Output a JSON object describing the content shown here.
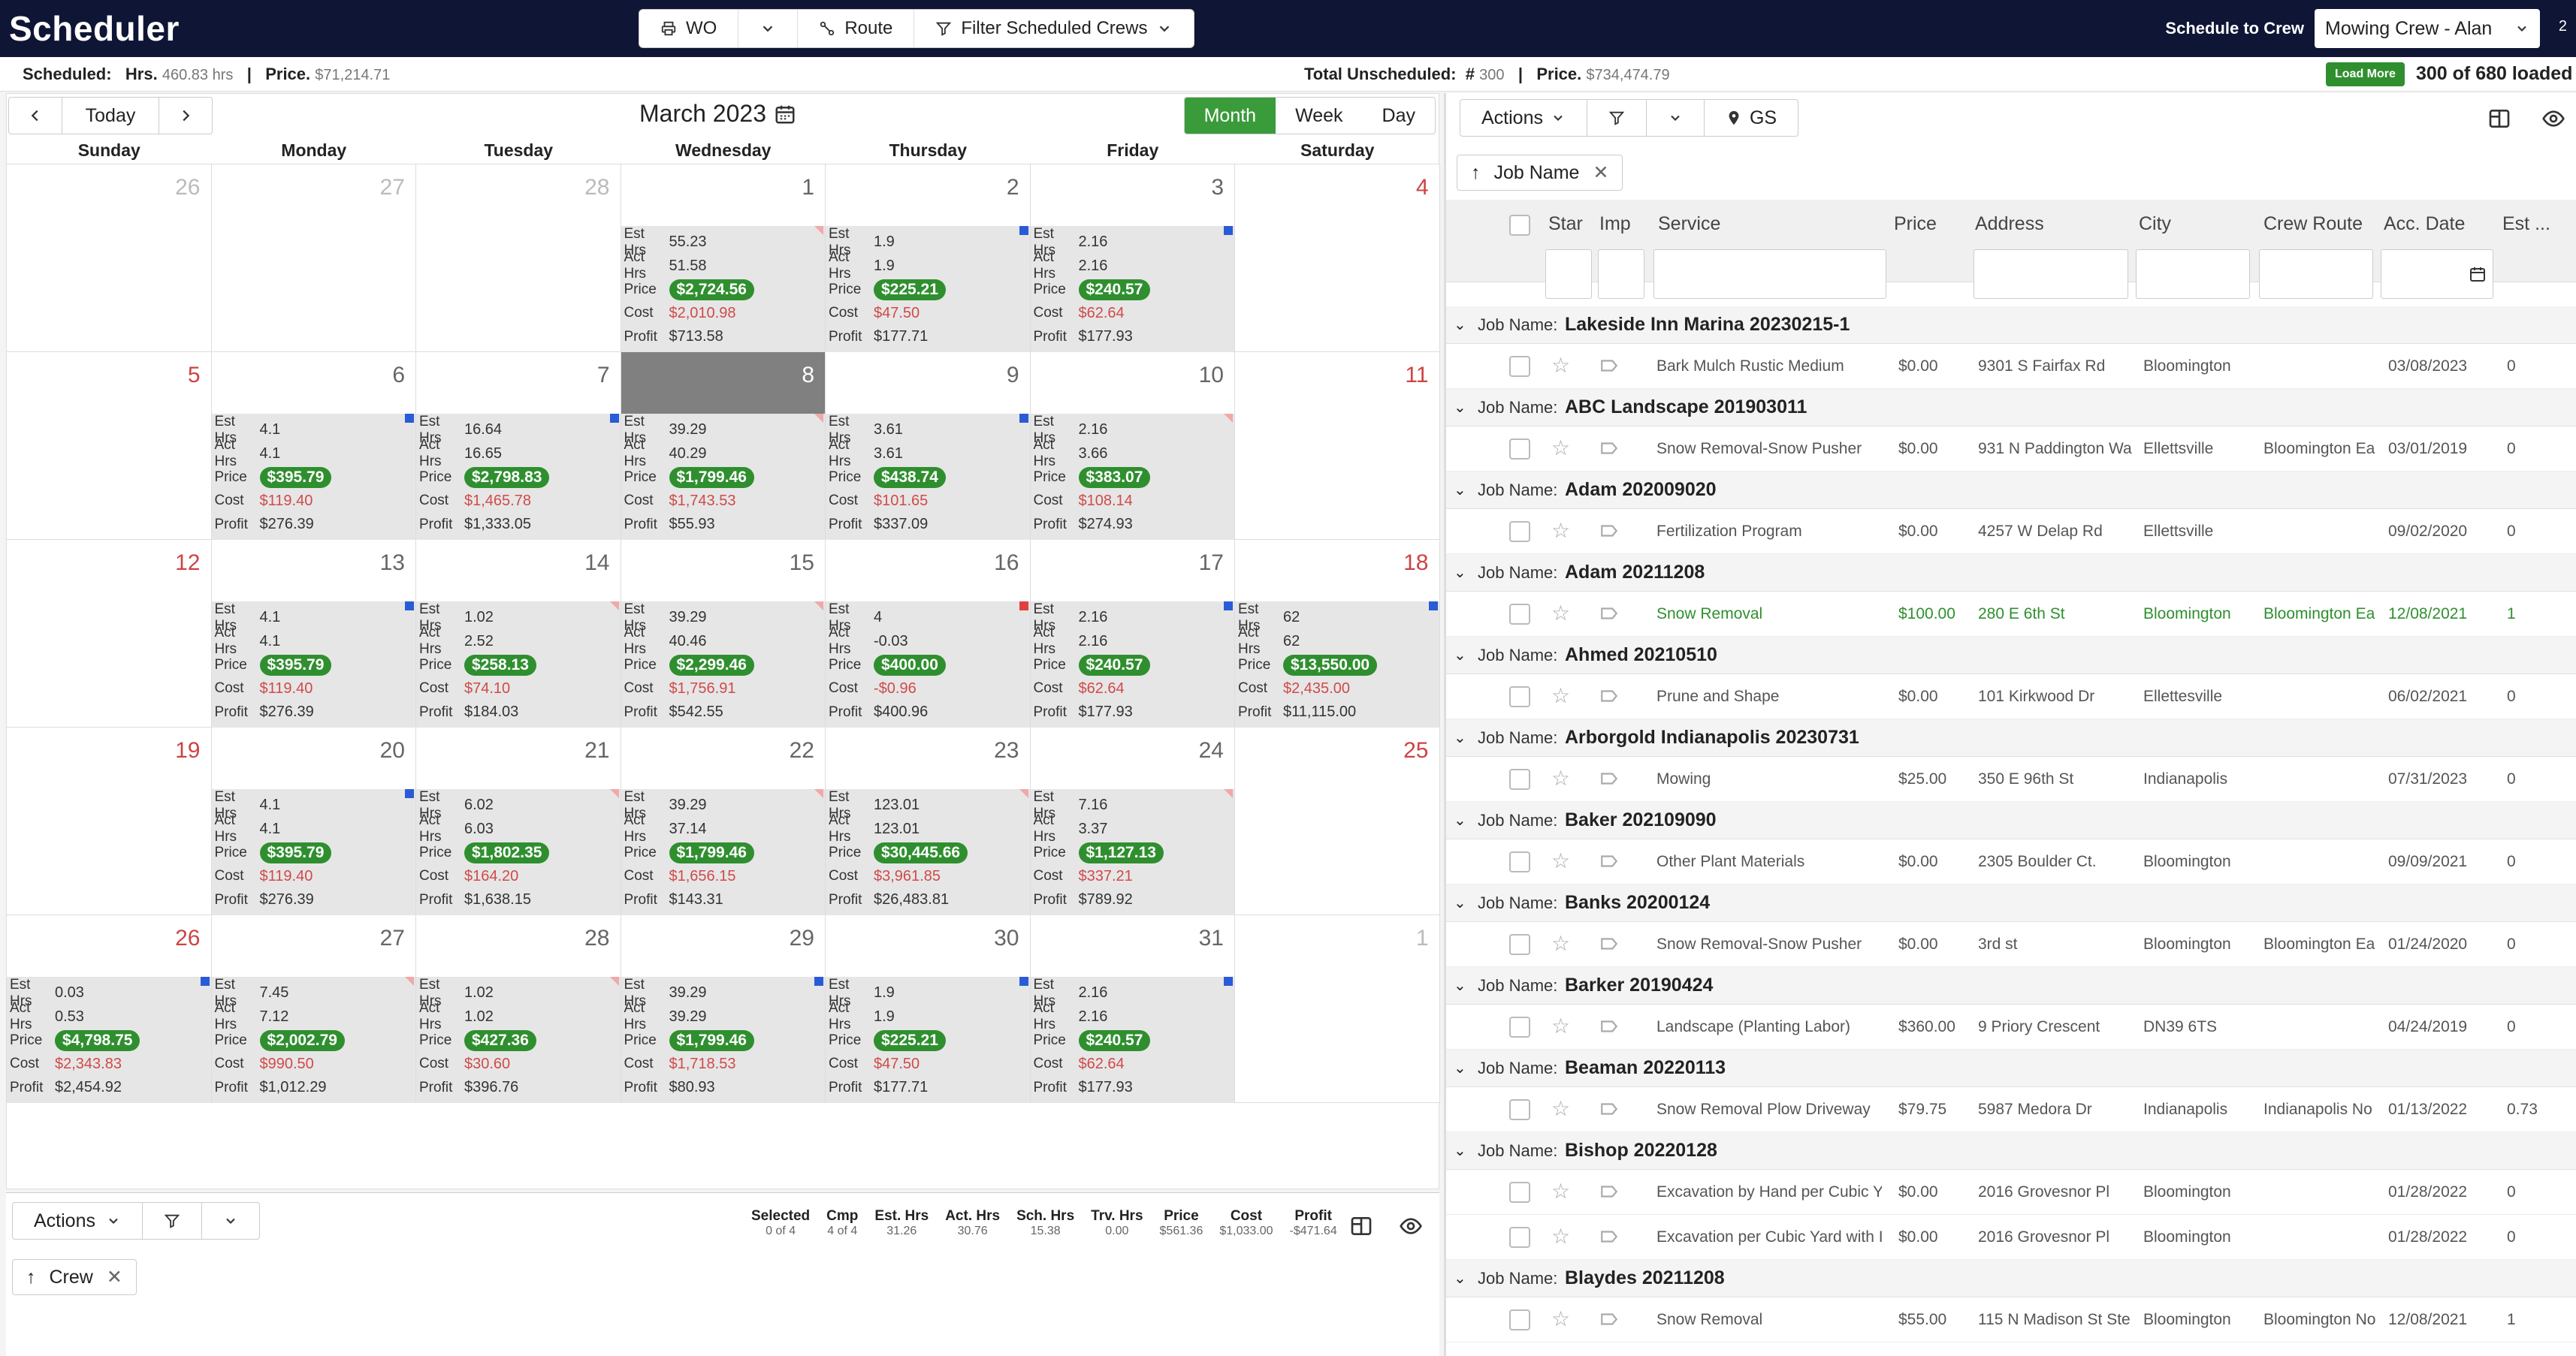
{
  "header": {
    "app_title": "Scheduler",
    "wo_label": "WO",
    "route_label": "Route",
    "filter_label": "Filter Scheduled Crews",
    "schedule_to_crew_label": "Schedule to Crew",
    "crew_selected": "Mowing Crew - Alan",
    "page_indicator": "2"
  },
  "summary": {
    "scheduled_label": "Scheduled:",
    "hrs_label": "Hrs.",
    "hrs_value": "460.83 hrs",
    "price_label": "Price.",
    "price_value": "$71,214.71",
    "unscheduled_label": "Total Unscheduled:",
    "unscheduled_count_label": "#",
    "unscheduled_count": "300",
    "unscheduled_price_label": "Price.",
    "unscheduled_price": "$734,474.79",
    "load_more": "Load More",
    "loaded_text": "300 of 680 loaded"
  },
  "calendar": {
    "today_label": "Today",
    "month_title": "March 2023",
    "views": [
      "Month",
      "Week",
      "Day"
    ],
    "active_view": "Month",
    "day_names": [
      "Sunday",
      "Monday",
      "Tuesday",
      "Wednesday",
      "Thursday",
      "Friday",
      "Saturday"
    ],
    "stat_labels": {
      "est": "Est Hrs",
      "act": "Act Hrs",
      "price": "Price",
      "cost": "Cost",
      "profit": "Profit"
    },
    "weeks": [
      [
        {
          "day": "26",
          "out": true
        },
        {
          "day": "27",
          "out": true
        },
        {
          "day": "28",
          "out": true
        },
        {
          "day": "1",
          "flag": "pink",
          "est": "55.23",
          "act": "51.58",
          "price": "$2,724.56",
          "cost": "$2,010.98",
          "profit": "$713.58"
        },
        {
          "day": "2",
          "flag": "blue",
          "est": "1.9",
          "act": "1.9",
          "price": "$225.21",
          "cost": "$47.50",
          "profit": "$177.71"
        },
        {
          "day": "3",
          "flag": "blue",
          "est": "2.16",
          "act": "2.16",
          "price": "$240.57",
          "cost": "$62.64",
          "profit": "$177.93"
        },
        {
          "day": "4",
          "weekend": true
        }
      ],
      [
        {
          "day": "5",
          "weekend": true
        },
        {
          "day": "6",
          "flag": "blue",
          "est": "4.1",
          "act": "4.1",
          "price": "$395.79",
          "cost": "$119.40",
          "profit": "$276.39"
        },
        {
          "day": "7",
          "flag": "blue",
          "est": "16.64",
          "act": "16.65",
          "price": "$2,798.83",
          "cost": "$1,465.78",
          "profit": "$1,333.05"
        },
        {
          "day": "8",
          "selected": true,
          "flag": "pink",
          "est": "39.29",
          "act": "40.29",
          "price": "$1,799.46",
          "cost": "$1,743.53",
          "profit": "$55.93"
        },
        {
          "day": "9",
          "flag": "blue",
          "est": "3.61",
          "act": "3.61",
          "price": "$438.74",
          "cost": "$101.65",
          "profit": "$337.09"
        },
        {
          "day": "10",
          "flag": "pink",
          "est": "2.16",
          "act": "3.66",
          "price": "$383.07",
          "cost": "$108.14",
          "profit": "$274.93"
        },
        {
          "day": "11",
          "weekend": true
        }
      ],
      [
        {
          "day": "12",
          "weekend": true
        },
        {
          "day": "13",
          "flag": "blue",
          "est": "4.1",
          "act": "4.1",
          "price": "$395.79",
          "cost": "$119.40",
          "profit": "$276.39"
        },
        {
          "day": "14",
          "flag": "pink",
          "est": "1.02",
          "act": "2.52",
          "price": "$258.13",
          "cost": "$74.10",
          "profit": "$184.03"
        },
        {
          "day": "15",
          "flag": "pink",
          "est": "39.29",
          "act": "40.46",
          "price": "$2,299.46",
          "cost": "$1,756.91",
          "profit": "$542.55"
        },
        {
          "day": "16",
          "flag": "red",
          "est": "4",
          "act": "-0.03",
          "price": "$400.00",
          "cost": "-$0.96",
          "profit": "$400.96"
        },
        {
          "day": "17",
          "flag": "blue",
          "est": "2.16",
          "act": "2.16",
          "price": "$240.57",
          "cost": "$62.64",
          "profit": "$177.93"
        },
        {
          "day": "18",
          "weekend": true,
          "flag": "blue",
          "est": "62",
          "act": "62",
          "price": "$13,550.00",
          "cost": "$2,435.00",
          "profit": "$11,115.00"
        }
      ],
      [
        {
          "day": "19",
          "weekend": true
        },
        {
          "day": "20",
          "flag": "blue",
          "est": "4.1",
          "act": "4.1",
          "price": "$395.79",
          "cost": "$119.40",
          "profit": "$276.39"
        },
        {
          "day": "21",
          "flag": "pink",
          "est": "6.02",
          "act": "6.03",
          "price": "$1,802.35",
          "cost": "$164.20",
          "profit": "$1,638.15"
        },
        {
          "day": "22",
          "flag": "pink",
          "est": "39.29",
          "act": "37.14",
          "price": "$1,799.46",
          "cost": "$1,656.15",
          "profit": "$143.31"
        },
        {
          "day": "23",
          "flag": "pink",
          "est": "123.01",
          "act": "123.01",
          "price": "$30,445.66",
          "cost": "$3,961.85",
          "profit": "$26,483.81"
        },
        {
          "day": "24",
          "flag": "pink",
          "est": "7.16",
          "act": "3.37",
          "price": "$1,127.13",
          "cost": "$337.21",
          "profit": "$789.92"
        },
        {
          "day": "25",
          "weekend": true
        }
      ],
      [
        {
          "day": "26",
          "weekend": true,
          "flag": "blue",
          "est": "0.03",
          "act": "0.53",
          "price": "$4,798.75",
          "cost": "$2,343.83",
          "profit": "$2,454.92"
        },
        {
          "day": "27",
          "flag": "pink",
          "est": "7.45",
          "act": "7.12",
          "price": "$2,002.79",
          "cost": "$990.50",
          "profit": "$1,012.29"
        },
        {
          "day": "28",
          "flag": "pink",
          "est": "1.02",
          "act": "1.02",
          "price": "$427.36",
          "cost": "$30.60",
          "profit": "$396.76"
        },
        {
          "day": "29",
          "flag": "blue",
          "est": "39.29",
          "act": "39.29",
          "price": "$1,799.46",
          "cost": "$1,718.53",
          "profit": "$80.93"
        },
        {
          "day": "30",
          "flag": "blue",
          "est": "1.9",
          "act": "1.9",
          "price": "$225.21",
          "cost": "$47.50",
          "profit": "$177.71"
        },
        {
          "day": "31",
          "flag": "blue",
          "est": "2.16",
          "act": "2.16",
          "price": "$240.57",
          "cost": "$62.64",
          "profit": "$177.93"
        },
        {
          "day": "1",
          "out": true
        }
      ]
    ]
  },
  "bottom_panel": {
    "actions_label": "Actions",
    "stats": [
      {
        "label": "Selected",
        "value": "0 of 4"
      },
      {
        "label": "Cmp",
        "value": "4 of 4"
      },
      {
        "label": "Est. Hrs",
        "value": "31.26"
      },
      {
        "label": "Act. Hrs",
        "value": "30.76"
      },
      {
        "label": "Sch. Hrs",
        "value": "15.38"
      },
      {
        "label": "Trv. Hrs",
        "value": "0.00"
      },
      {
        "label": "Price",
        "value": "$561.36"
      },
      {
        "label": "Cost",
        "value": "$1,033.00"
      },
      {
        "label": "Profit",
        "value": "-$471.64"
      }
    ],
    "group_chip": "Crew"
  },
  "right_panel": {
    "actions_label": "Actions",
    "gs_label": "GS",
    "group_chip": "Job Name",
    "columns": [
      "Star",
      "Imp",
      "Service",
      "Price",
      "Address",
      "City",
      "Crew Route",
      "Acc. Date",
      "Est ..."
    ],
    "group_label": "Job Name:",
    "groups": [
      {
        "name": "Lakeside Inn Marina 20230215-1",
        "items": [
          {
            "service": "Bark Mulch Rustic Medium",
            "price": "$0.00",
            "address": "9301 S Fairfax Rd",
            "city": "Bloomington",
            "route": "",
            "date": "03/08/2023",
            "est": "0"
          }
        ]
      },
      {
        "name": "ABC Landscape 201903011",
        "items": [
          {
            "service": "Snow Removal-Snow Pusher",
            "price": "$0.00",
            "address": "931 N Paddington Wa",
            "city": "Ellettsville",
            "route": "Bloomington Ea",
            "date": "03/01/2019",
            "est": "0"
          }
        ]
      },
      {
        "name": "Adam 202009020",
        "items": [
          {
            "service": "Fertilization Program",
            "price": "$0.00",
            "address": "4257 W Delap Rd",
            "city": "Ellettsville",
            "route": "",
            "date": "09/02/2020",
            "est": "0"
          }
        ]
      },
      {
        "name": "Adam 20211208",
        "items": [
          {
            "service": "Snow Removal",
            "price": "$100.00",
            "address": "280 E 6th St",
            "city": "Bloomington",
            "route": "Bloomington Ea",
            "date": "12/08/2021",
            "est": "1",
            "green": true
          }
        ]
      },
      {
        "name": "Ahmed 20210510",
        "items": [
          {
            "service": "Prune and Shape",
            "price": "$0.00",
            "address": "101 Kirkwood Dr",
            "city": "Ellettesville",
            "route": "",
            "date": "06/02/2021",
            "est": "0"
          }
        ]
      },
      {
        "name": "Arborgold Indianapolis 20230731",
        "items": [
          {
            "service": "Mowing",
            "price": "$25.00",
            "address": "350 E 96th St",
            "city": "Indianapolis",
            "route": "",
            "date": "07/31/2023",
            "est": "0"
          }
        ]
      },
      {
        "name": "Baker 202109090",
        "items": [
          {
            "service": "Other Plant Materials",
            "price": "$0.00",
            "address": "2305 Boulder Ct.",
            "city": "Bloomington",
            "route": "",
            "date": "09/09/2021",
            "est": "0"
          }
        ]
      },
      {
        "name": "Banks 20200124",
        "items": [
          {
            "service": "Snow Removal-Snow Pusher",
            "price": "$0.00",
            "address": "3rd st",
            "city": "Bloomington",
            "route": "Bloomington Ea",
            "date": "01/24/2020",
            "est": "0"
          }
        ]
      },
      {
        "name": "Barker 20190424",
        "items": [
          {
            "service": "Landscape (Planting Labor)",
            "price": "$360.00",
            "address": "9 Priory Crescent",
            "city": "DN39 6TS",
            "route": "",
            "date": "04/24/2019",
            "est": "0"
          }
        ]
      },
      {
        "name": "Beaman 20220113",
        "items": [
          {
            "service": "Snow Removal Plow Driveway",
            "price": "$79.75",
            "address": "5987 Medora Dr",
            "city": "Indianapolis",
            "route": "Indianapolis No",
            "date": "01/13/2022",
            "est": "0.73"
          }
        ]
      },
      {
        "name": "Bishop 20220128",
        "items": [
          {
            "service": "Excavation by Hand per Cubic Y.",
            "price": "$0.00",
            "address": "2016 Grovesnor Pl",
            "city": "Bloomington",
            "route": "",
            "date": "01/28/2022",
            "est": "0"
          },
          {
            "service": "Excavation per Cubic Yard with I",
            "price": "$0.00",
            "address": "2016 Grovesnor Pl",
            "city": "Bloomington",
            "route": "",
            "date": "01/28/2022",
            "est": "0"
          }
        ]
      },
      {
        "name": "Blaydes 20211208",
        "items": [
          {
            "service": "Snow Removal",
            "price": "$55.00",
            "address": "115 N Madison St Ste I",
            "city": "Bloomington",
            "route": "Bloomington No",
            "date": "12/08/2021",
            "est": "1"
          }
        ]
      }
    ]
  },
  "colors": {
    "topbar": "#0f1535",
    "green": "#2f8f2f",
    "cost_red": "#d04a4a",
    "weekend_red": "#c44444",
    "flag_blue": "#2a5bd7"
  }
}
